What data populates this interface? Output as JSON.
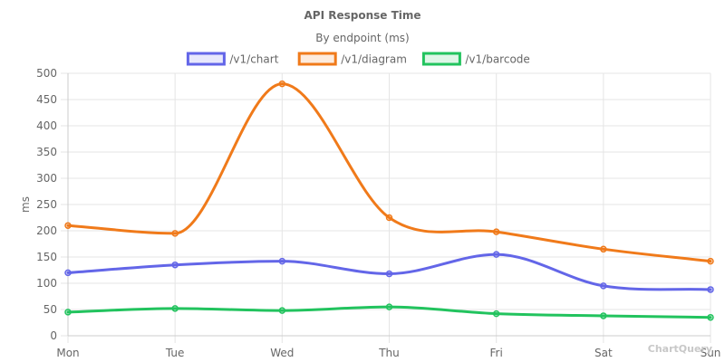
{
  "chart_data": {
    "type": "line",
    "title": "API Response Time",
    "subtitle": "By endpoint (ms)",
    "xlabel": "",
    "ylabel": "ms",
    "ylim": [
      0,
      500
    ],
    "yticks": [
      "0",
      "50",
      "100",
      "150",
      "200",
      "250",
      "300",
      "350",
      "400",
      "450",
      "500"
    ],
    "categories": [
      "Mon",
      "Tue",
      "Wed",
      "Thu",
      "Fri",
      "Sat",
      "Sun"
    ],
    "grid": true,
    "legend_position": "top",
    "series": [
      {
        "name": "/v1/chart",
        "color": "#6366e8",
        "values": [
          120,
          135,
          142,
          118,
          155,
          95,
          88
        ]
      },
      {
        "name": "/v1/diagram",
        "color": "#f07a1a",
        "values": [
          210,
          195,
          480,
          225,
          198,
          165,
          142
        ]
      },
      {
        "name": "/v1/barcode",
        "color": "#22c35e",
        "values": [
          45,
          52,
          48,
          55,
          42,
          38,
          35
        ]
      }
    ],
    "watermark": "ChartQuery"
  }
}
